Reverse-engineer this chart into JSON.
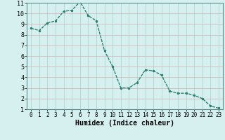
{
  "x": [
    0,
    1,
    2,
    3,
    4,
    5,
    6,
    7,
    8,
    9,
    10,
    11,
    12,
    13,
    14,
    15,
    16,
    17,
    18,
    19,
    20,
    21,
    22,
    23
  ],
  "y": [
    8.6,
    8.4,
    9.1,
    9.3,
    10.2,
    10.3,
    11.1,
    9.8,
    9.3,
    6.5,
    5.0,
    3.0,
    3.0,
    3.5,
    4.7,
    4.6,
    4.2,
    2.7,
    2.5,
    2.5,
    2.3,
    2.0,
    1.3,
    1.1
  ],
  "line_color": "#2e7f72",
  "marker": ".",
  "markersize": 3,
  "linewidth": 1.0,
  "bg_color": "#d6f0f0",
  "grid_color": "#b8d8d8",
  "grid_major_color": "#c8b8b8",
  "xlabel": "Humidex (Indice chaleur)",
  "xlabel_fontsize": 7,
  "tick_fontsize": 6,
  "xlim": [
    -0.5,
    23.5
  ],
  "ylim": [
    1,
    11
  ],
  "yticks": [
    1,
    2,
    3,
    4,
    5,
    6,
    7,
    8,
    9,
    10,
    11
  ],
  "xticks": [
    0,
    1,
    2,
    3,
    4,
    5,
    6,
    7,
    8,
    9,
    10,
    11,
    12,
    13,
    14,
    15,
    16,
    17,
    18,
    19,
    20,
    21,
    22,
    23
  ]
}
